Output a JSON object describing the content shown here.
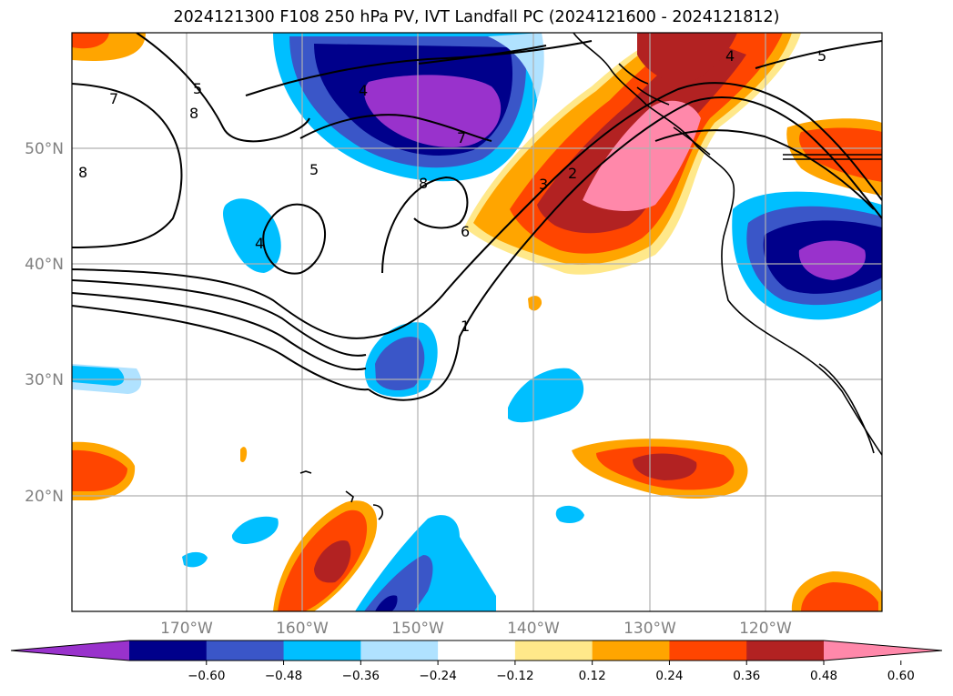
{
  "title": "2024121300 F108 250 hPa PV, IVT Landfall PC (2024121600 - 2024121812)",
  "map": {
    "lat_labels": [
      "50°N",
      "40°N",
      "30°N",
      "20°N"
    ],
    "lon_labels": [
      "170°W",
      "160°W",
      "150°W",
      "140°W",
      "130°W",
      "120°W"
    ],
    "contour_labels": [
      "7",
      "5",
      "8",
      "8",
      "5",
      "4",
      "7",
      "8",
      "6",
      "3",
      "2",
      "1",
      "4",
      "5",
      "4"
    ]
  },
  "colorbar": {
    "ticks": [
      "−0.60",
      "−0.48",
      "−0.36",
      "−0.24",
      "−0.12",
      "0.12",
      "0.24",
      "0.36",
      "0.48",
      "0.60"
    ],
    "colors": [
      "#9932cc",
      "#00008b",
      "#3a56c8",
      "#00bfff",
      "#b0e2ff",
      "#ffffff",
      "#ffe88a",
      "#ffa500",
      "#ff4500",
      "#b22222",
      "#ff88aa"
    ]
  }
}
